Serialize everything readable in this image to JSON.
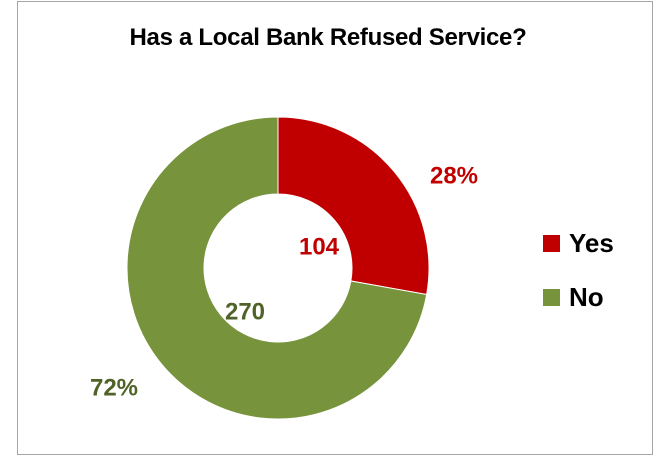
{
  "chart_data": {
    "type": "pie",
    "title": "Has a Local Bank Refused Service?",
    "categories": [
      "Yes",
      "No"
    ],
    "values": [
      104,
      270
    ],
    "percent_labels": [
      "28%",
      "72%"
    ],
    "colors": [
      "#c00000",
      "#77933c"
    ],
    "label_colors": [
      "#c00000",
      "#4f6228"
    ],
    "donut": true,
    "legend": {
      "position": "right",
      "entries": [
        "Yes",
        "No"
      ]
    }
  }
}
